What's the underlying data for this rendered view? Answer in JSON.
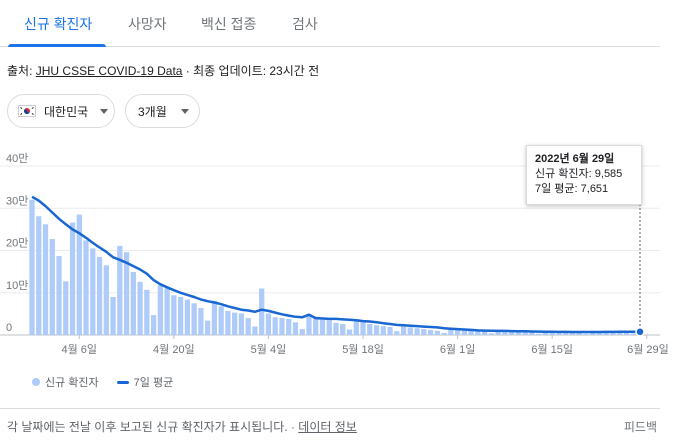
{
  "tabs": [
    {
      "label": "신규 확진자",
      "active": true
    },
    {
      "label": "사망자"
    },
    {
      "label": "백신 접종"
    },
    {
      "label": "검사"
    }
  ],
  "source": {
    "prefix": "출처: ",
    "link": "JHU CSSE COVID-19 Data",
    "suffix": " · 최종 업데이트: 23시간 전"
  },
  "filters": {
    "country": "대한민국",
    "range": "3개월"
  },
  "tooltip": {
    "date": "2022년 6월 29일",
    "new_cases": "신규 확진자: 9,585",
    "avg": "7일 평균: 7,651"
  },
  "legend": {
    "bars": "신규 확진자",
    "line": "7일 평균"
  },
  "footnote": {
    "text": "각 날짜에는 전날 이후 보고된 신규 확진자가 표시됩니다.",
    "sep": " · ",
    "link": "데이터 정보"
  },
  "feedback": "피드백",
  "colors": {
    "accent": "#1a73e8",
    "bar": "#aecbfa",
    "line": "#1967d2"
  },
  "chart_data": {
    "type": "bar",
    "y_ticks": [
      "40만",
      "30만",
      "20만",
      "10만",
      "0"
    ],
    "ylim": [
      0,
      400000
    ],
    "x_tick_labels": [
      "4월 6일",
      "4월 20일",
      "5월 4일",
      "5월 18일",
      "6월 1일",
      "6월 15일",
      "6월 29일"
    ],
    "x_tick_index": [
      7,
      21,
      35,
      49,
      63,
      77,
      91
    ],
    "start_date": "2022-03-30",
    "end_date": "2022-06-29",
    "series": [
      {
        "name": "신규 확진자",
        "type": "bar",
        "values": [
          320000,
          281000,
          262000,
          227000,
          187000,
          127000,
          266000,
          285000,
          224000,
          205000,
          185000,
          165000,
          90000,
          211000,
          196000,
          149000,
          126000,
          107000,
          47000,
          118000,
          111000,
          94000,
          90000,
          84000,
          75000,
          64000,
          34000,
          81000,
          68000,
          57000,
          53000,
          51000,
          40000,
          20000,
          110000,
          51000,
          42000,
          40000,
          38000,
          30000,
          14000,
          49000,
          43000,
          36000,
          35000,
          29000,
          26000,
          13000,
          35000,
          30000,
          26000,
          23000,
          21000,
          19000,
          9000,
          23000,
          18000,
          16000,
          14000,
          12000,
          10000,
          5000,
          16000,
          13000,
          12000,
          10000,
          9000,
          8000,
          4000,
          12000,
          10000,
          9000,
          8000,
          7000,
          6000,
          3000,
          9000,
          8000,
          7000,
          7000,
          6000,
          6000,
          3000,
          10000,
          9000,
          9000,
          8000,
          8000,
          7000,
          3500,
          9585
        ]
      },
      {
        "name": "7일 평균",
        "type": "line",
        "values": [
          327000,
          318000,
          305000,
          290000,
          275000,
          262000,
          250000,
          241000,
          230000,
          218000,
          207000,
          197000,
          184000,
          178000,
          171000,
          163000,
          155000,
          145000,
          130000,
          120000,
          113000,
          106000,
          100000,
          95000,
          90000,
          84000,
          80000,
          77000,
          73000,
          68000,
          64000,
          60000,
          58000,
          55000,
          60000,
          57000,
          53000,
          49000,
          46000,
          43000,
          42000,
          48000,
          40000,
          39000,
          38000,
          38000,
          37000,
          36000,
          35000,
          33000,
          32000,
          30000,
          28000,
          26000,
          24000,
          23000,
          22000,
          21000,
          20000,
          19000,
          18000,
          16000,
          15000,
          14000,
          13000,
          12000,
          11000,
          10500,
          10000,
          9800,
          9600,
          9300,
          9000,
          8700,
          8400,
          8000,
          7800,
          7600,
          7400,
          7300,
          7200,
          7100,
          7000,
          7100,
          7200,
          7300,
          7400,
          7500,
          7550,
          7600,
          7651
        ]
      }
    ]
  }
}
